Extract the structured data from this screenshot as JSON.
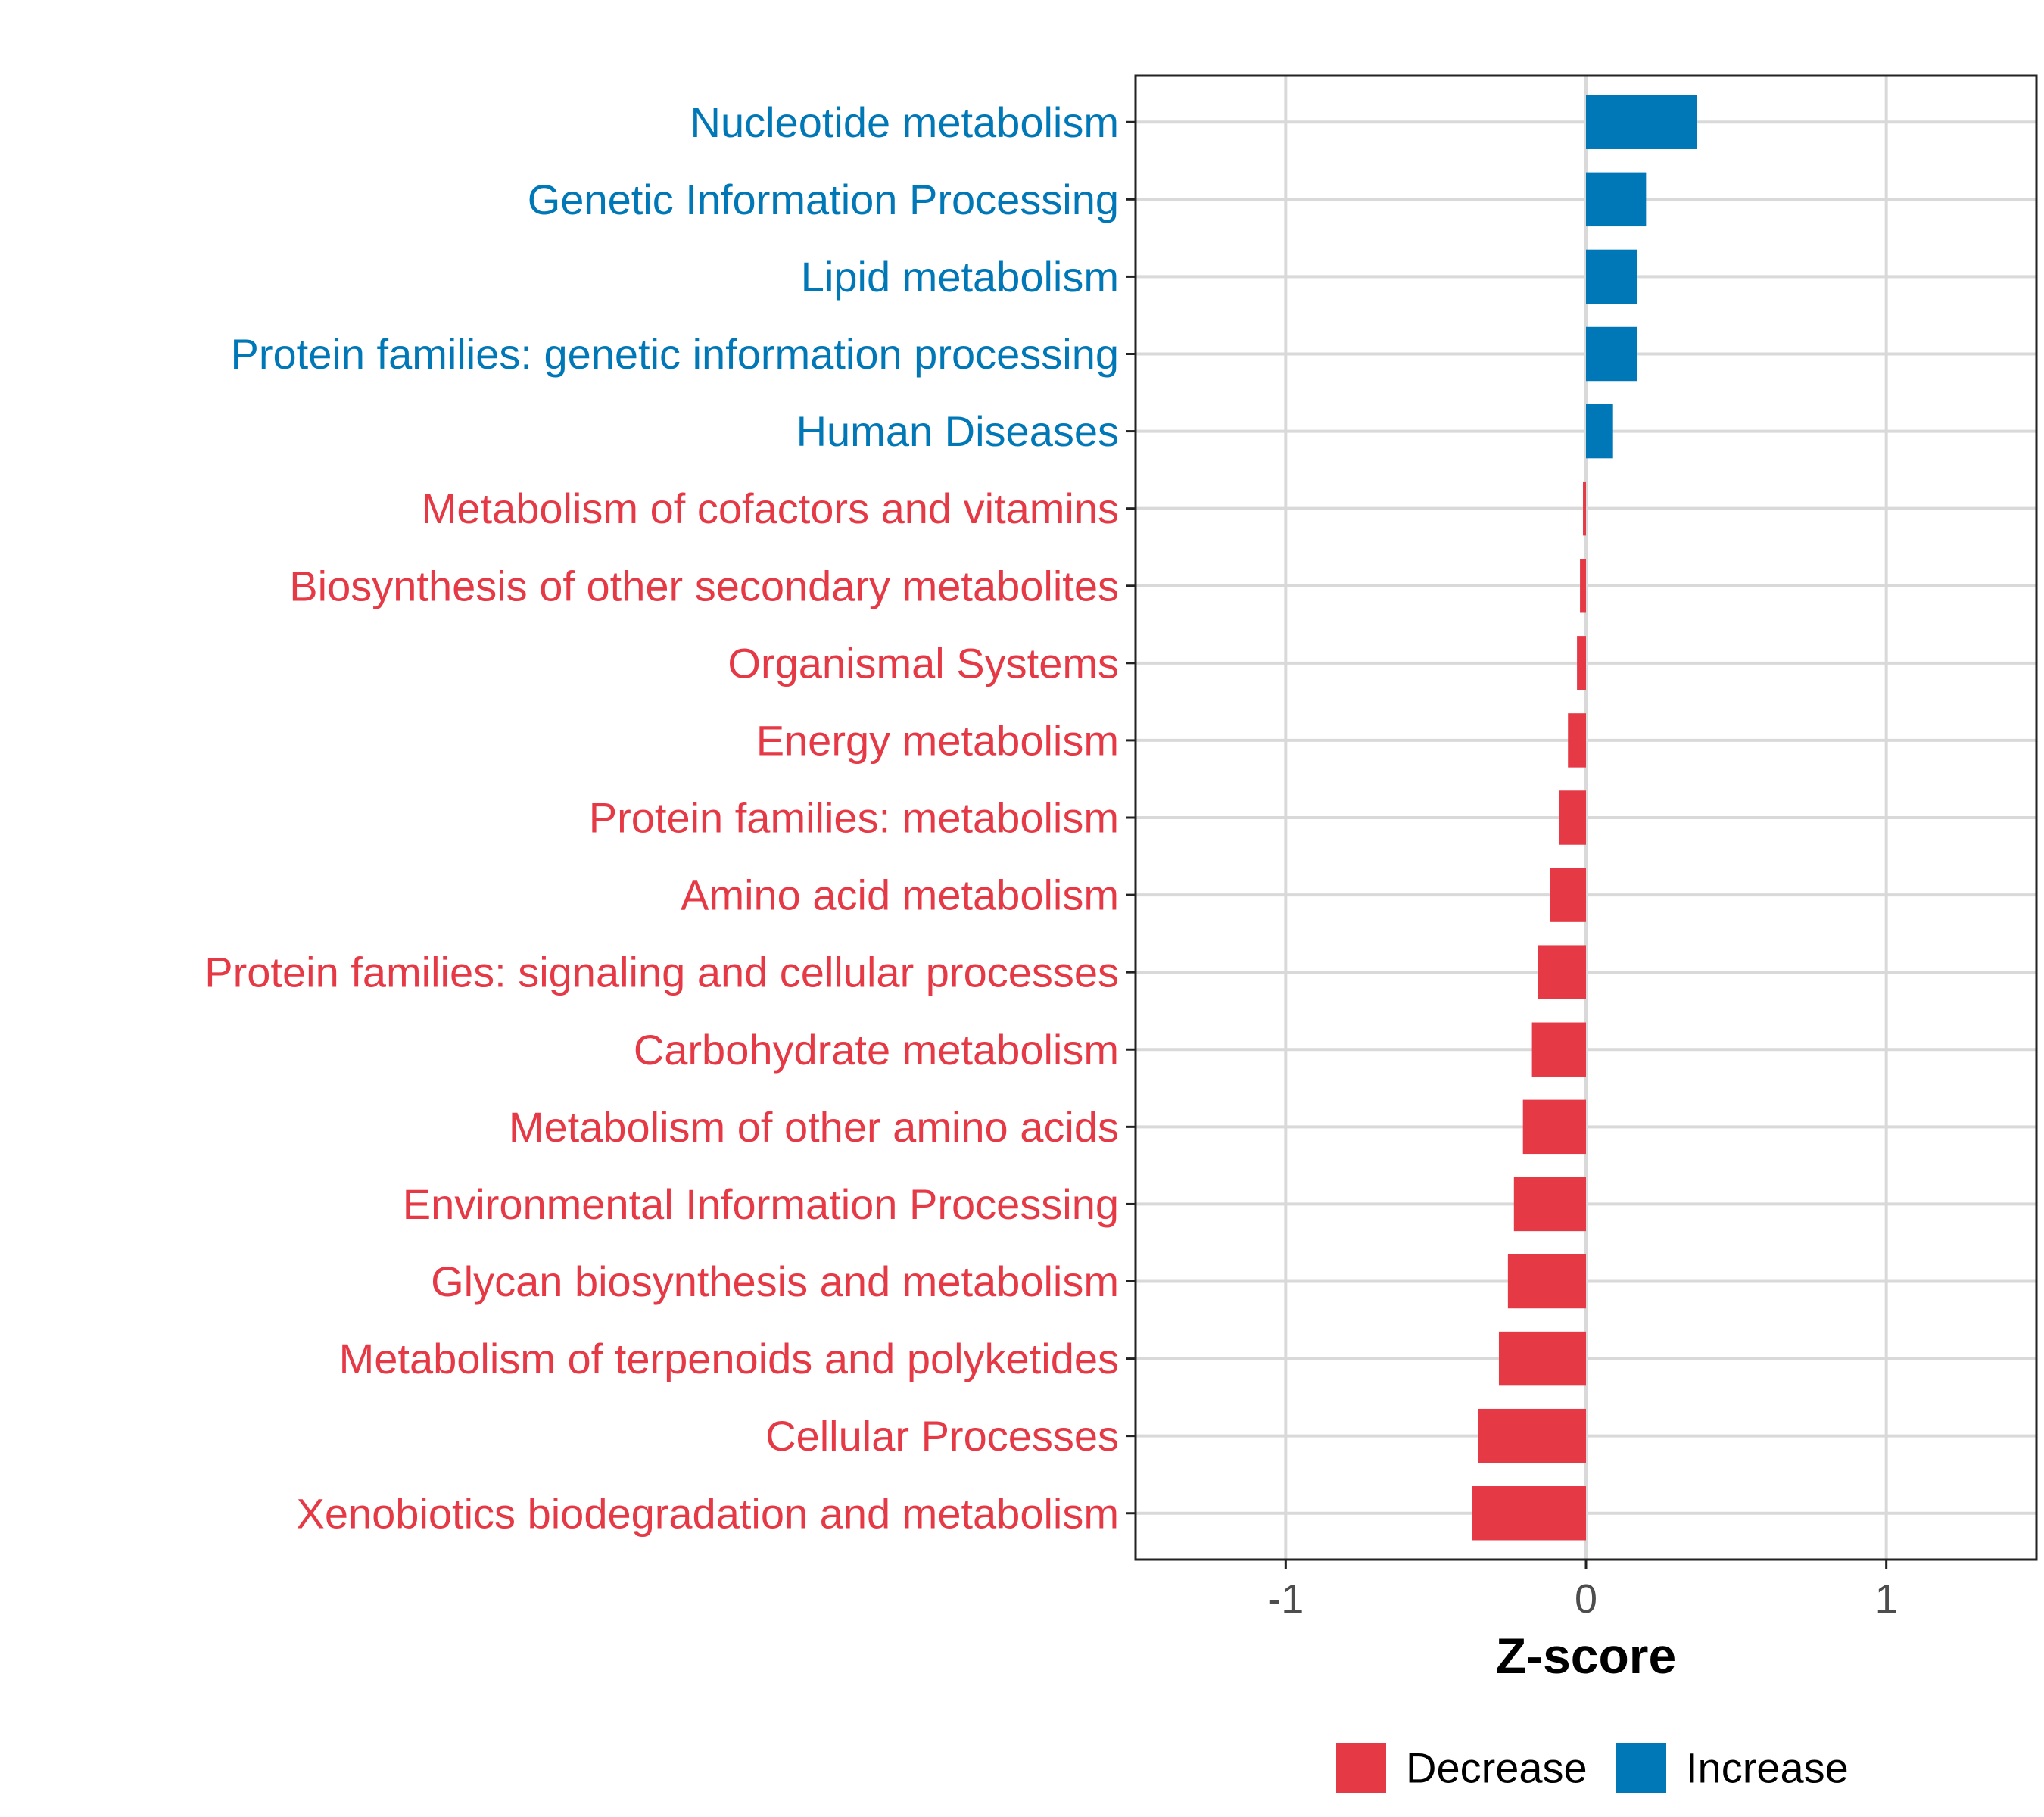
{
  "chart_data": {
    "type": "bar",
    "orientation": "horizontal",
    "title": "",
    "xlabel": "Z-score",
    "ylabel": "",
    "xlim": [
      -1.5,
      1.5
    ],
    "xticks": [
      -1,
      0,
      1
    ],
    "grid": true,
    "legend_position": "bottom",
    "categories": [
      "Nucleotide metabolism",
      "Genetic Information Processing",
      "Lipid metabolism",
      "Protein families: genetic information processing",
      "Human Diseases",
      "Metabolism of cofactors and vitamins",
      "Biosynthesis of other secondary metabolites",
      "Organismal Systems",
      "Energy metabolism",
      "Protein families: metabolism",
      "Amino acid metabolism",
      "Protein families: signaling and cellular processes",
      "Carbohydrate metabolism",
      "Metabolism of other amino acids",
      "Environmental Information Processing",
      "Glycan biosynthesis and metabolism",
      "Metabolism of terpenoids and polyketides",
      "Cellular Processes",
      "Xenobiotics biodegradation and metabolism"
    ],
    "values": [
      0.37,
      0.2,
      0.17,
      0.17,
      0.09,
      -0.01,
      -0.02,
      -0.03,
      -0.06,
      -0.09,
      -0.12,
      -0.16,
      -0.18,
      -0.21,
      -0.24,
      -0.26,
      -0.29,
      -0.36,
      -0.38
    ],
    "groups": [
      "Increase",
      "Increase",
      "Increase",
      "Increase",
      "Increase",
      "Decrease",
      "Decrease",
      "Decrease",
      "Decrease",
      "Decrease",
      "Decrease",
      "Decrease",
      "Decrease",
      "Decrease",
      "Decrease",
      "Decrease",
      "Decrease",
      "Decrease",
      "Decrease"
    ],
    "legend": [
      {
        "name": "Decrease",
        "color": "#e63946"
      },
      {
        "name": "Increase",
        "color": "#0077b6"
      }
    ]
  }
}
